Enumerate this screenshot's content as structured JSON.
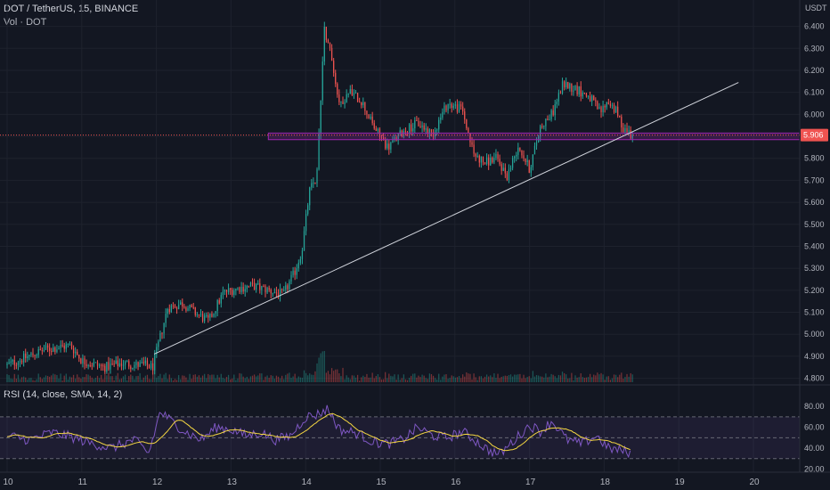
{
  "header": {
    "title": "DOT / TetherUS, 15, BINANCE",
    "volume_label": "Vol · DOT",
    "rsi_label": "RSI (14, close, SMA, 14, 2)",
    "currency": "USDT"
  },
  "colors": {
    "background": "#131722",
    "grid": "#1e222d",
    "up": "#26a69a",
    "down": "#ef5350",
    "price_line": "#ef5350",
    "zone": "#9c27b0",
    "trendline": "#d1d4dc",
    "rsi": "#7e57c2",
    "rsi_ma": "#f5d742",
    "rsi_band": "#7e57c2"
  },
  "chart_data": [
    {
      "type": "candlestick",
      "title": "DOT / TetherUS, 15, BINANCE",
      "ylabel": "USDT",
      "ylim": [
        4.77,
        6.52
      ],
      "y_ticks": [
        4.8,
        4.9,
        5.0,
        5.1,
        5.2,
        5.3,
        5.4,
        5.5,
        5.6,
        5.7,
        5.8,
        5.9,
        6.0,
        6.1,
        6.2,
        6.3,
        6.4
      ],
      "y_tick_labels": [
        "4.800",
        "4.900",
        "5.000",
        "5.100",
        "5.200",
        "5.300",
        "5.400",
        "5.500",
        "5.600",
        "5.700",
        "5.800",
        "5.900",
        "6.000",
        "6.100",
        "6.200",
        "6.300",
        "6.400"
      ],
      "xlim": [
        10.0,
        21.0
      ],
      "x_ticks": [
        10,
        11,
        12,
        13,
        14,
        15,
        16,
        17,
        18,
        19,
        20
      ],
      "x_tick_labels": [
        "10",
        "11",
        "12",
        "13",
        "14",
        "15",
        "16",
        "17",
        "18",
        "19",
        "20"
      ],
      "last_price": 5.906,
      "last_price_label": "5.906",
      "path_x": [
        10.0,
        10.5,
        10.85,
        11.0,
        11.3,
        11.55,
        11.7,
        11.85,
        11.95,
        12.15,
        12.35,
        12.55,
        12.7,
        12.9,
        13.1,
        13.3,
        13.5,
        13.7,
        13.85,
        13.95,
        14.05,
        14.15,
        14.25,
        14.35,
        14.45,
        14.6,
        14.75,
        14.9,
        15.1,
        15.3,
        15.5,
        15.7,
        15.9,
        16.1,
        16.25,
        16.4,
        16.55,
        16.7,
        16.85,
        17.0,
        17.15,
        17.3,
        17.45,
        17.6,
        17.8,
        17.95,
        18.05,
        18.15,
        18.25,
        18.38
      ],
      "path_close": [
        4.86,
        4.93,
        4.95,
        4.88,
        4.85,
        4.87,
        4.86,
        4.86,
        4.85,
        5.12,
        5.14,
        5.09,
        5.06,
        5.19,
        5.21,
        5.22,
        5.2,
        5.18,
        5.28,
        5.38,
        5.65,
        5.72,
        6.4,
        6.25,
        6.05,
        6.1,
        6.06,
        5.95,
        5.85,
        5.92,
        5.96,
        5.91,
        6.05,
        6.02,
        5.82,
        5.78,
        5.8,
        5.72,
        5.86,
        5.75,
        5.95,
        6.0,
        6.14,
        6.12,
        6.08,
        6.01,
        6.06,
        6.02,
        5.94,
        5.906
      ],
      "volume_range": [
        0,
        100
      ],
      "support_zone": {
        "low": 5.885,
        "high": 5.915,
        "x_from": 13.5
      },
      "trendline": {
        "x": [
          11.97,
          19.8
        ],
        "y": [
          4.91,
          6.145
        ]
      }
    },
    {
      "type": "line",
      "title": "RSI (14, close, SMA, 14, 2)",
      "ylim": [
        17,
        87
      ],
      "y_ticks": [
        20,
        40,
        60,
        80
      ],
      "y_tick_labels": [
        "20.00",
        "40.00",
        "60.00",
        "80.00"
      ],
      "band": [
        30,
        70
      ],
      "mid": 50,
      "path_x": [
        10.0,
        10.3,
        10.6,
        10.9,
        11.1,
        11.4,
        11.7,
        11.9,
        12.05,
        12.2,
        12.4,
        12.6,
        12.8,
        13.0,
        13.2,
        13.4,
        13.6,
        13.8,
        14.0,
        14.15,
        14.3,
        14.45,
        14.7,
        14.9,
        15.1,
        15.3,
        15.5,
        15.7,
        15.9,
        16.1,
        16.3,
        16.45,
        16.6,
        16.8,
        17.0,
        17.15,
        17.3,
        17.5,
        17.7,
        17.9,
        18.05,
        18.2,
        18.35
      ],
      "path_rsi": [
        52,
        48,
        55,
        50,
        45,
        40,
        48,
        35,
        75,
        66,
        55,
        48,
        60,
        58,
        52,
        55,
        48,
        52,
        70,
        72,
        78,
        58,
        54,
        46,
        44,
        48,
        60,
        52,
        50,
        56,
        46,
        38,
        34,
        48,
        62,
        56,
        66,
        48,
        44,
        52,
        40,
        38,
        36
      ]
    }
  ]
}
